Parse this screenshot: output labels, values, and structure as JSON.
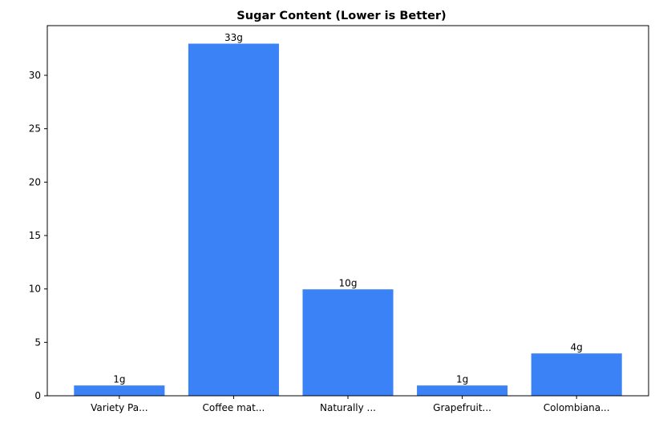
{
  "chart_data": {
    "type": "bar",
    "title": "Sugar Content (Lower is Better)",
    "xlabel": "",
    "ylabel": "",
    "categories": [
      "Variety Pa...",
      "Coffee mat...",
      "Naturally ...",
      "Grapefruit...",
      "Colombiana..."
    ],
    "values": [
      1,
      33,
      10,
      1,
      4
    ],
    "data_labels": [
      "1g",
      "33g",
      "10g",
      "1g",
      "4g"
    ],
    "ylim": [
      0,
      34.65
    ],
    "yticks": [
      0,
      5,
      10,
      15,
      20,
      25,
      30
    ],
    "grid": false,
    "legend": "none",
    "bar_color": "#3b82f6",
    "bar_edge_color": "#ffffff"
  }
}
